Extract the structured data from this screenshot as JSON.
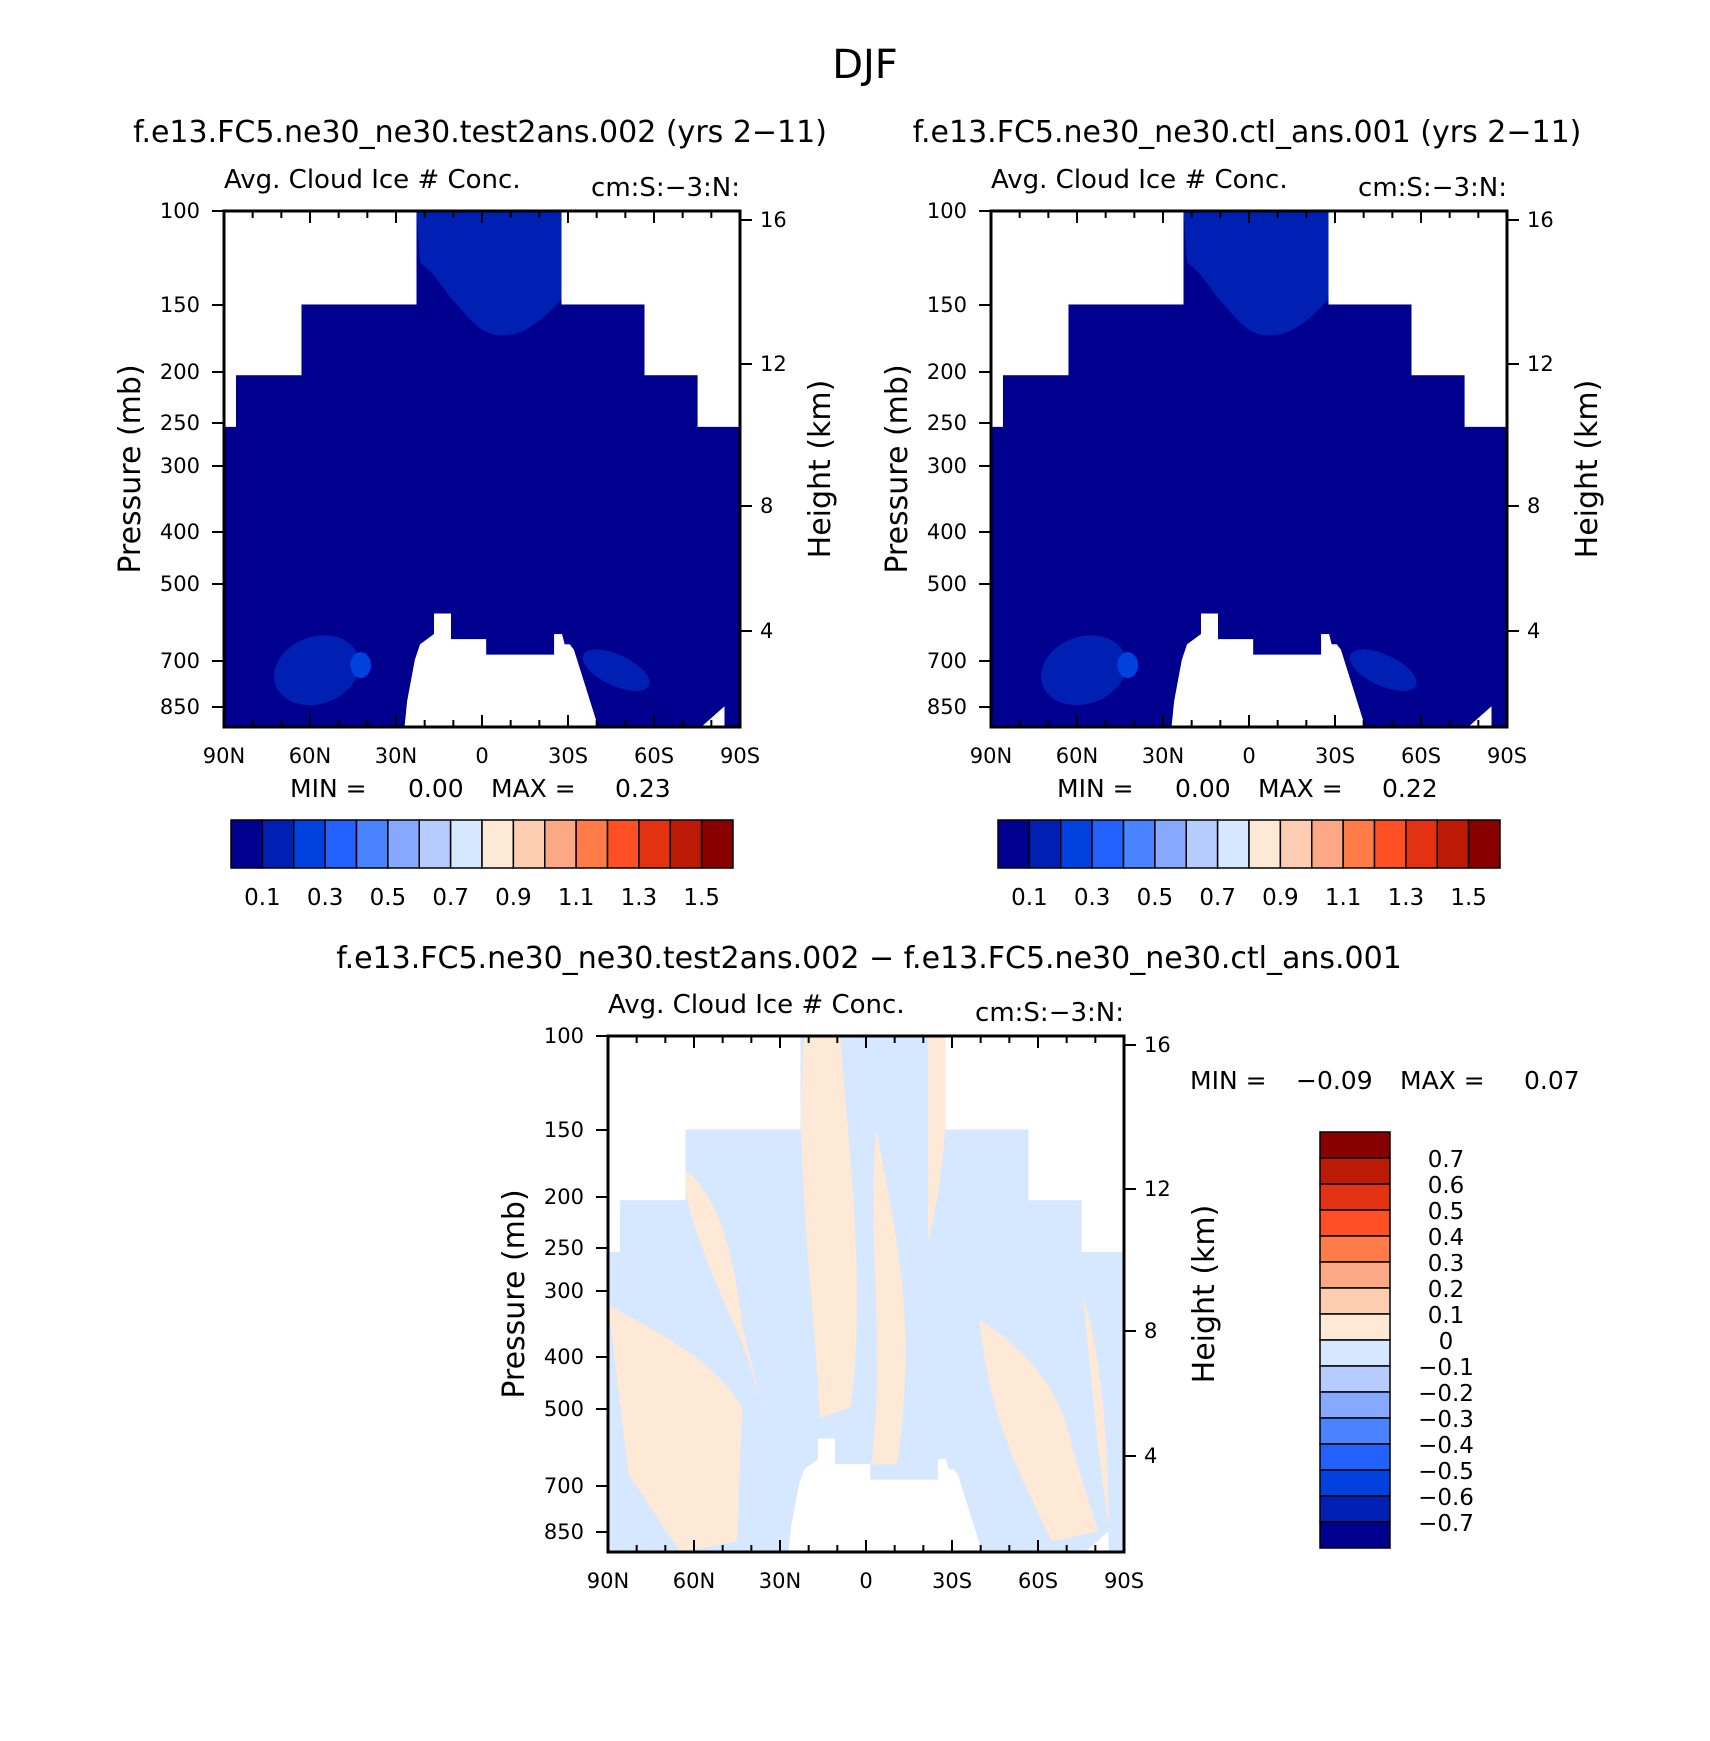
{
  "figure": {
    "title": "DJF",
    "diff_title": "f.e13.FC5.ne30_ne30.test2ans.002 − f.e13.FC5.ne30_ne30.ctl_ans.001"
  },
  "colors": {
    "blues": [
      "#00008f",
      "#0020b4",
      "#0041e0",
      "#2361ff",
      "#4a83ff",
      "#86a8ff",
      "#b6ccff",
      "#d6e8ff"
    ],
    "reds": [
      "#fee8d6",
      "#fdcdb1",
      "#fca884",
      "#ff7b47",
      "#ff5025",
      "#e33212",
      "#bd1a05",
      "#8a0000"
    ]
  },
  "chart_data": [
    {
      "type": "heatmap",
      "title": "f.e13.FC5.ne30_ne30.test2ans.002 (yrs 2−11)",
      "left_label": "Avg. Cloud Ice # Conc.",
      "right_label": "cm:S:−3:N:",
      "ylabel": "Pressure (mb)",
      "ylabel_right": "Height (km)",
      "xticks": [
        "90N",
        "60N",
        "30N",
        "0",
        "30S",
        "60S",
        "90S"
      ],
      "yticks": [
        "100",
        "150",
        "200",
        "250",
        "300",
        "400",
        "500",
        "700",
        "850"
      ],
      "yticks_right": [
        "16",
        "12",
        "8",
        "4"
      ],
      "min_label": "MIN =",
      "min_value": "0.00",
      "max_label": "MAX =",
      "max_value": "0.23",
      "colorbar_levels": [
        0.1,
        0.2,
        0.3,
        0.4,
        0.5,
        0.6,
        0.7,
        0.8,
        0.9,
        1.0,
        1.1,
        1.2,
        1.3,
        1.4,
        1.5
      ],
      "colorbar_labels": [
        "0.1",
        "0.3",
        "0.5",
        "0.7",
        "0.9",
        "1.1",
        "1.3",
        "1.5"
      ],
      "field_min": 0.0,
      "field_max": 0.23
    },
    {
      "type": "heatmap",
      "title": "f.e13.FC5.ne30_ne30.ctl_ans.001 (yrs 2−11)",
      "left_label": "Avg. Cloud Ice # Conc.",
      "right_label": "cm:S:−3:N:",
      "ylabel": "Pressure (mb)",
      "ylabel_right": "Height (km)",
      "xticks": [
        "90N",
        "60N",
        "30N",
        "0",
        "30S",
        "60S",
        "90S"
      ],
      "yticks": [
        "100",
        "150",
        "200",
        "250",
        "300",
        "400",
        "500",
        "700",
        "850"
      ],
      "yticks_right": [
        "16",
        "12",
        "8",
        "4"
      ],
      "min_label": "MIN =",
      "min_value": "0.00",
      "max_label": "MAX =",
      "max_value": "0.22",
      "colorbar_levels": [
        0.1,
        0.2,
        0.3,
        0.4,
        0.5,
        0.6,
        0.7,
        0.8,
        0.9,
        1.0,
        1.1,
        1.2,
        1.3,
        1.4,
        1.5
      ],
      "colorbar_labels": [
        "0.1",
        "0.3",
        "0.5",
        "0.7",
        "0.9",
        "1.1",
        "1.3",
        "1.5"
      ],
      "field_min": 0.0,
      "field_max": 0.22
    },
    {
      "type": "heatmap",
      "left_label": "Avg. Cloud Ice # Conc.",
      "right_label": "cm:S:−3:N:",
      "ylabel": "Pressure (mb)",
      "ylabel_right": "Height (km)",
      "xticks": [
        "90N",
        "60N",
        "30N",
        "0",
        "30S",
        "60S",
        "90S"
      ],
      "yticks": [
        "100",
        "150",
        "200",
        "250",
        "300",
        "400",
        "500",
        "700",
        "850"
      ],
      "yticks_right": [
        "16",
        "12",
        "8",
        "4"
      ],
      "min_label": "MIN =",
      "min_value": "−0.09",
      "max_label": "MAX =",
      "max_value": "0.07",
      "colorbar_levels": [
        -0.7,
        -0.6,
        -0.5,
        -0.4,
        -0.3,
        -0.2,
        -0.1,
        0,
        0.1,
        0.2,
        0.3,
        0.4,
        0.5,
        0.6,
        0.7
      ],
      "colorbar_labels": [
        "0.7",
        "0.6",
        "0.5",
        "0.4",
        "0.3",
        "0.2",
        "0.1",
        "0",
        "−0.1",
        "−0.2",
        "−0.3",
        "−0.4",
        "−0.5",
        "−0.6",
        "−0.7"
      ],
      "field_min": -0.09,
      "field_max": 0.07
    }
  ]
}
